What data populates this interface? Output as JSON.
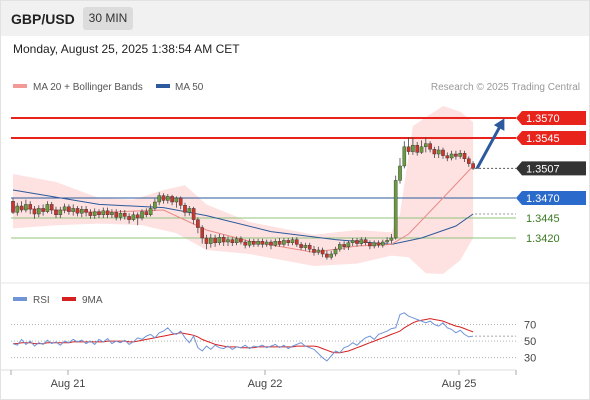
{
  "header": {
    "pair": "GBP/USD",
    "timeframe": "30 MIN"
  },
  "timestamp": "Monday, August 25, 2025 1:38:54 AM CET",
  "legend": {
    "ma20": {
      "label": "MA 20 + Bollinger Bands",
      "color": "#f39a97"
    },
    "ma50": {
      "label": "MA 50",
      "color": "#2c5a9c"
    },
    "credit": "Research © 2025 Trading Central"
  },
  "colors": {
    "up": "#6a9a3e",
    "down": "#c8362e",
    "band_fill": "#fde2e1",
    "resistance": "#e8231c",
    "pivot": "#2c5a9c",
    "support": "#8fc47b",
    "current": "#333333",
    "arrow": "#2c5a9c",
    "rsi": "#6f95d6",
    "rsi_ma": "#d62020"
  },
  "chart_data": [
    {
      "type": "candlestick",
      "x_labels": [
        "Aug 21",
        "Aug 22",
        "Aug 25"
      ],
      "ylim": [
        1.3365,
        1.3595
      ],
      "levels": [
        {
          "label": "1.3570",
          "value": 1.357,
          "kind": "resistance"
        },
        {
          "label": "1.3545",
          "value": 1.3545,
          "kind": "resistance"
        },
        {
          "label": "1.3507",
          "value": 1.3507,
          "kind": "current"
        },
        {
          "label": "1.3470",
          "value": 1.347,
          "kind": "pivot"
        },
        {
          "label": "1.3445",
          "value": 1.3445,
          "kind": "support"
        },
        {
          "label": "1.3420",
          "value": 1.342,
          "kind": "support"
        }
      ],
      "candles": [
        [
          1.3466,
          1.3452,
          1.347,
          1.345
        ],
        [
          1.3452,
          1.346,
          1.3464,
          1.3448
        ],
        [
          1.346,
          1.3455,
          1.3466,
          1.3452
        ],
        [
          1.3455,
          1.3462,
          1.3468,
          1.3452
        ],
        [
          1.3462,
          1.3456,
          1.3466,
          1.345
        ],
        [
          1.3456,
          1.345,
          1.346,
          1.3444
        ],
        [
          1.345,
          1.3457,
          1.3461,
          1.3446
        ],
        [
          1.3457,
          1.3453,
          1.3462,
          1.3448
        ],
        [
          1.3453,
          1.3462,
          1.3466,
          1.3451
        ],
        [
          1.3462,
          1.3455,
          1.3465,
          1.345
        ],
        [
          1.3455,
          1.3449,
          1.3459,
          1.3445
        ],
        [
          1.3449,
          1.3455,
          1.3459,
          1.3445
        ],
        [
          1.3455,
          1.3459,
          1.3463,
          1.3451
        ],
        [
          1.3459,
          1.3453,
          1.3462,
          1.3449
        ],
        [
          1.3453,
          1.3457,
          1.3462,
          1.3448
        ],
        [
          1.3457,
          1.3451,
          1.346,
          1.3447
        ],
        [
          1.3451,
          1.3456,
          1.346,
          1.3446
        ],
        [
          1.3456,
          1.3452,
          1.346,
          1.3447
        ],
        [
          1.3452,
          1.3448,
          1.3456,
          1.3444
        ],
        [
          1.3448,
          1.3453,
          1.3457,
          1.3444
        ],
        [
          1.3453,
          1.3449,
          1.3456,
          1.3445
        ],
        [
          1.3449,
          1.3454,
          1.3458,
          1.3445
        ],
        [
          1.3454,
          1.3449,
          1.3458,
          1.3445
        ],
        [
          1.3449,
          1.3452,
          1.3456,
          1.3445
        ],
        [
          1.3452,
          1.3446,
          1.3456,
          1.3442
        ],
        [
          1.3446,
          1.3451,
          1.3455,
          1.3442
        ],
        [
          1.3451,
          1.3447,
          1.3455,
          1.3443
        ],
        [
          1.3447,
          1.3443,
          1.3451,
          1.3438
        ],
        [
          1.3443,
          1.3449,
          1.3453,
          1.3441
        ],
        [
          1.3449,
          1.3445,
          1.3452,
          1.3436
        ],
        [
          1.3445,
          1.3453,
          1.3456,
          1.3442
        ],
        [
          1.3453,
          1.3449,
          1.3457,
          1.3446
        ],
        [
          1.3449,
          1.3457,
          1.3462,
          1.3447
        ],
        [
          1.3457,
          1.3465,
          1.3469,
          1.3454
        ],
        [
          1.3465,
          1.3473,
          1.3477,
          1.3461
        ],
        [
          1.3473,
          1.3467,
          1.3476,
          1.3463
        ],
        [
          1.3467,
          1.3472,
          1.3475,
          1.3463
        ],
        [
          1.3472,
          1.3465,
          1.3474,
          1.3461
        ],
        [
          1.3465,
          1.347,
          1.3472,
          1.3458
        ],
        [
          1.347,
          1.3461,
          1.3472,
          1.3456
        ],
        [
          1.3461,
          1.3452,
          1.3464,
          1.3447
        ],
        [
          1.3452,
          1.3457,
          1.346,
          1.3448
        ],
        [
          1.3457,
          1.3443,
          1.3459,
          1.3437
        ],
        [
          1.3443,
          1.3433,
          1.3446,
          1.3426
        ],
        [
          1.3433,
          1.342,
          1.3436,
          1.3413
        ],
        [
          1.342,
          1.3413,
          1.3424,
          1.3406
        ],
        [
          1.3413,
          1.342,
          1.3425,
          1.3408
        ],
        [
          1.342,
          1.3414,
          1.3424,
          1.3409
        ],
        [
          1.3414,
          1.3421,
          1.3425,
          1.3411
        ],
        [
          1.3421,
          1.3415,
          1.3424,
          1.341
        ],
        [
          1.3415,
          1.3418,
          1.3422,
          1.341
        ],
        [
          1.3418,
          1.3414,
          1.3421,
          1.341
        ],
        [
          1.3414,
          1.3419,
          1.3422,
          1.3411
        ],
        [
          1.3419,
          1.3415,
          1.3422,
          1.3412
        ],
        [
          1.3415,
          1.3411,
          1.3418,
          1.3407
        ],
        [
          1.3411,
          1.3416,
          1.3419,
          1.3408
        ],
        [
          1.3416,
          1.3412,
          1.3419,
          1.3409
        ],
        [
          1.3412,
          1.3416,
          1.3419,
          1.3409
        ],
        [
          1.3416,
          1.3412,
          1.3419,
          1.3408
        ],
        [
          1.3412,
          1.3415,
          1.3418,
          1.3409
        ],
        [
          1.3415,
          1.3411,
          1.3418,
          1.3406
        ],
        [
          1.3411,
          1.3416,
          1.3419,
          1.3409
        ],
        [
          1.3416,
          1.3412,
          1.342,
          1.3409
        ],
        [
          1.3412,
          1.3417,
          1.342,
          1.3409
        ],
        [
          1.3417,
          1.3414,
          1.342,
          1.341
        ],
        [
          1.3414,
          1.3418,
          1.3421,
          1.3411
        ],
        [
          1.3418,
          1.3412,
          1.3421,
          1.3409
        ],
        [
          1.3412,
          1.3408,
          1.3415,
          1.3405
        ],
        [
          1.3408,
          1.3411,
          1.3414,
          1.3404
        ],
        [
          1.3411,
          1.3406,
          1.3414,
          1.3402
        ],
        [
          1.3406,
          1.3402,
          1.341,
          1.3398
        ],
        [
          1.3402,
          1.3405,
          1.3409,
          1.3399
        ],
        [
          1.3405,
          1.34,
          1.3408,
          1.3396
        ],
        [
          1.34,
          1.3396,
          1.3404,
          1.3393
        ],
        [
          1.3396,
          1.34,
          1.3404,
          1.3393
        ],
        [
          1.34,
          1.3406,
          1.3409,
          1.3397
        ],
        [
          1.3406,
          1.3412,
          1.3415,
          1.3403
        ],
        [
          1.3412,
          1.3409,
          1.3416,
          1.3405
        ],
        [
          1.3409,
          1.3414,
          1.3417,
          1.3405
        ],
        [
          1.3414,
          1.3417,
          1.342,
          1.341
        ],
        [
          1.3417,
          1.3413,
          1.342,
          1.3409
        ],
        [
          1.3413,
          1.3418,
          1.3421,
          1.341
        ],
        [
          1.3418,
          1.3414,
          1.3421,
          1.3411
        ],
        [
          1.3414,
          1.341,
          1.3417,
          1.3406
        ],
        [
          1.341,
          1.3414,
          1.3417,
          1.3407
        ],
        [
          1.3414,
          1.3411,
          1.3417,
          1.3408
        ],
        [
          1.3411,
          1.3415,
          1.3418,
          1.3408
        ],
        [
          1.3415,
          1.3417,
          1.3421,
          1.3412
        ],
        [
          1.3417,
          1.342,
          1.3425,
          1.3413
        ],
        [
          1.342,
          1.3492,
          1.3498,
          1.3418
        ],
        [
          1.3492,
          1.351,
          1.352,
          1.3488
        ],
        [
          1.351,
          1.3534,
          1.3541,
          1.3507
        ],
        [
          1.3534,
          1.3528,
          1.3546,
          1.3524
        ],
        [
          1.3528,
          1.3536,
          1.3546,
          1.3524
        ],
        [
          1.3536,
          1.3527,
          1.354,
          1.3523
        ],
        [
          1.3527,
          1.3534,
          1.3542,
          1.3525
        ],
        [
          1.3534,
          1.3538,
          1.3546,
          1.3527
        ],
        [
          1.3538,
          1.3531,
          1.3541,
          1.3527
        ],
        [
          1.3531,
          1.3525,
          1.3534,
          1.352
        ],
        [
          1.3525,
          1.353,
          1.3535,
          1.352
        ],
        [
          1.353,
          1.3523,
          1.3533,
          1.3519
        ],
        [
          1.3523,
          1.352,
          1.3527,
          1.3516
        ],
        [
          1.352,
          1.3525,
          1.3529,
          1.3517
        ],
        [
          1.3525,
          1.3522,
          1.3529,
          1.3518
        ],
        [
          1.3522,
          1.3526,
          1.353,
          1.3519
        ],
        [
          1.3526,
          1.3519,
          1.3529,
          1.3515
        ],
        [
          1.3519,
          1.3513,
          1.3522,
          1.3509
        ],
        [
          1.3513,
          1.3507,
          1.3516,
          1.3505
        ]
      ],
      "ma20": [
        [
          0,
          1.3458
        ],
        [
          20,
          1.3452
        ],
        [
          35,
          1.3455
        ],
        [
          45,
          1.343
        ],
        [
          55,
          1.3416
        ],
        [
          70,
          1.3402
        ],
        [
          80,
          1.341
        ],
        [
          88,
          1.3412
        ],
        [
          92,
          1.3425
        ],
        [
          100,
          1.347
        ],
        [
          107,
          1.351
        ]
      ],
      "ma50": [
        [
          0,
          1.348
        ],
        [
          20,
          1.3462
        ],
        [
          35,
          1.3458
        ],
        [
          45,
          1.3448
        ],
        [
          60,
          1.3428
        ],
        [
          75,
          1.3418
        ],
        [
          88,
          1.3412
        ],
        [
          95,
          1.342
        ],
        [
          103,
          1.3435
        ],
        [
          107,
          1.345
        ]
      ],
      "bb_upper": [
        [
          0,
          1.35
        ],
        [
          10,
          1.349
        ],
        [
          20,
          1.347
        ],
        [
          28,
          1.3468
        ],
        [
          35,
          1.348
        ],
        [
          40,
          1.3486
        ],
        [
          45,
          1.3462
        ],
        [
          55,
          1.344
        ],
        [
          70,
          1.3424
        ],
        [
          80,
          1.343
        ],
        [
          88,
          1.3427
        ],
        [
          90,
          1.345
        ],
        [
          93,
          1.356
        ],
        [
          100,
          1.3585
        ],
        [
          104,
          1.3578
        ],
        [
          107,
          1.3565
        ]
      ],
      "bb_lower": [
        [
          0,
          1.3432
        ],
        [
          10,
          1.3436
        ],
        [
          20,
          1.3438
        ],
        [
          30,
          1.3436
        ],
        [
          38,
          1.3426
        ],
        [
          45,
          1.3405
        ],
        [
          55,
          1.34
        ],
        [
          70,
          1.3385
        ],
        [
          80,
          1.3388
        ],
        [
          88,
          1.3398
        ],
        [
          92,
          1.3396
        ],
        [
          96,
          1.3376
        ],
        [
          100,
          1.3375
        ],
        [
          104,
          1.3392
        ],
        [
          107,
          1.342
        ]
      ],
      "projection": {
        "from": [
          107,
          1.3507
        ],
        "to": [
          115,
          1.3563
        ]
      }
    },
    {
      "type": "line",
      "legend": [
        "RSI",
        "9MA"
      ],
      "ylim": [
        20,
        85
      ],
      "y_ticks": [
        70,
        50,
        30
      ],
      "rsi": [
        47,
        45,
        52,
        46,
        50,
        44,
        48,
        46,
        51,
        47,
        49,
        45,
        50,
        48,
        52,
        49,
        51,
        47,
        50,
        46,
        52,
        49,
        53,
        47,
        50,
        48,
        51,
        46,
        49,
        54,
        52,
        56,
        58,
        54,
        60,
        62,
        66,
        60,
        58,
        62,
        54,
        48,
        56,
        42,
        38,
        44,
        40,
        45,
        42,
        41,
        44,
        40,
        43,
        42,
        45,
        41,
        44,
        43,
        45,
        42,
        44,
        46,
        42,
        45,
        41,
        44,
        46,
        48,
        44,
        42,
        40,
        35,
        30,
        26,
        32,
        38,
        36,
        42,
        44,
        48,
        45,
        50,
        54,
        56,
        52,
        58,
        60,
        62,
        65,
        66,
        82,
        84,
        80,
        78,
        76,
        74,
        72,
        74,
        70,
        68,
        72,
        66,
        64,
        60,
        63,
        58,
        55,
        56
      ],
      "rsi_ma": [
        47,
        47,
        48,
        48,
        48,
        47,
        47,
        47,
        48,
        48,
        48,
        48,
        48,
        48,
        49,
        49,
        49,
        49,
        49,
        49,
        49,
        49,
        50,
        50,
        50,
        50,
        50,
        49,
        49,
        50,
        51,
        52,
        53,
        54,
        55,
        56,
        57,
        58,
        59,
        60,
        59,
        58,
        57,
        55,
        52,
        50,
        48,
        46,
        45,
        44,
        43,
        43,
        43,
        42,
        42,
        42,
        42,
        43,
        43,
        43,
        43,
        43,
        43,
        43,
        43,
        43,
        44,
        44,
        44,
        44,
        44,
        43,
        41,
        39,
        37,
        36,
        36,
        37,
        38,
        40,
        42,
        44,
        46,
        48,
        50,
        52,
        54,
        56,
        58,
        60,
        62,
        66,
        69,
        72,
        74,
        75,
        76,
        77,
        76,
        75,
        74,
        72,
        70,
        68,
        67,
        65,
        63,
        61
      ]
    }
  ]
}
